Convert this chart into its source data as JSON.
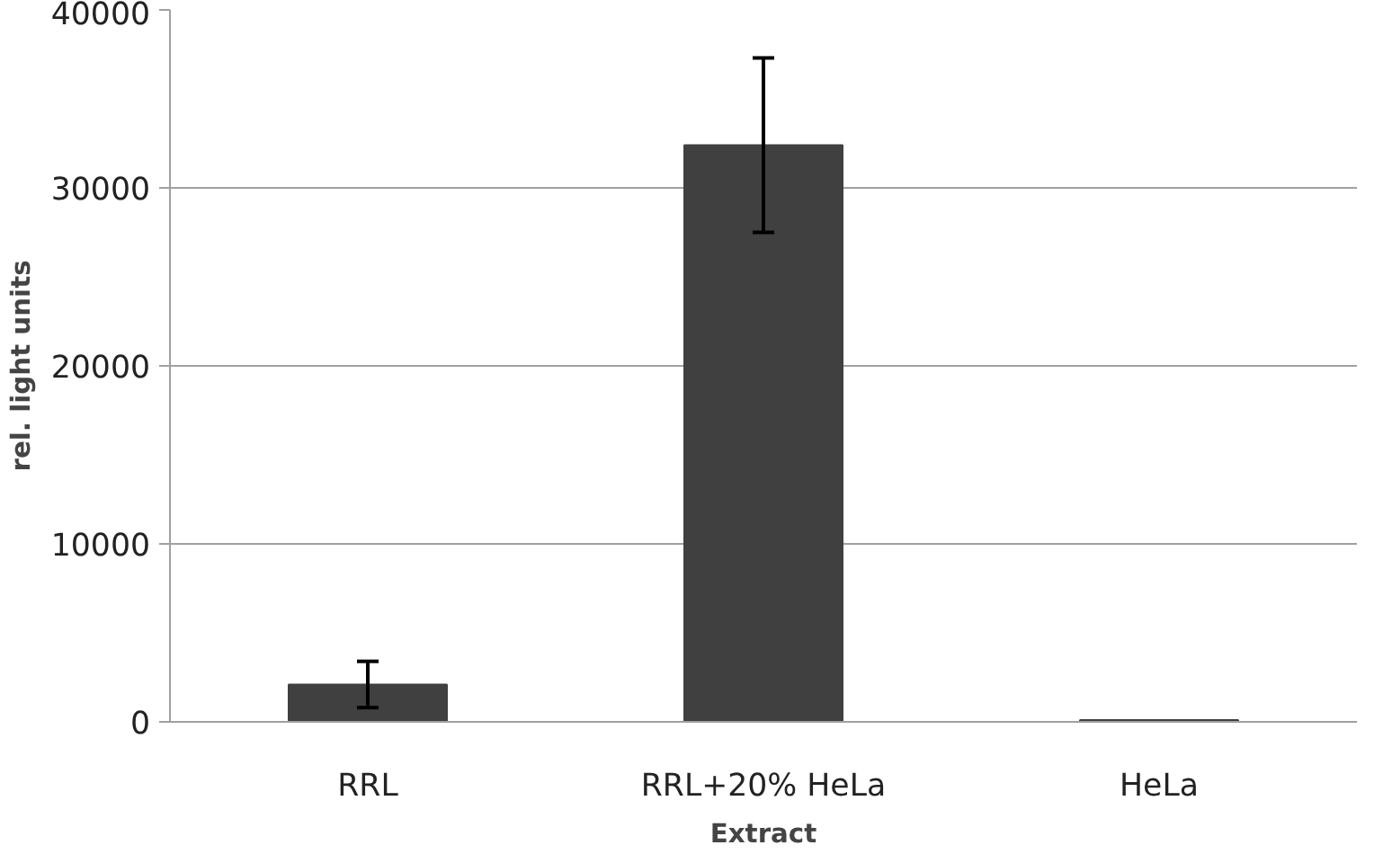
{
  "chart_data": {
    "type": "bar",
    "xlabel": "Extract",
    "ylabel": "rel. light units",
    "categories": [
      "RRL",
      "RRL+20% HeLa",
      "HeLa"
    ],
    "values": [
      2100,
      32400,
      100
    ],
    "errors": [
      1300,
      4900,
      null
    ],
    "color": "#404040",
    "ylim": [
      0,
      40000
    ],
    "yticks": [
      0,
      10000,
      20000,
      30000,
      40000
    ],
    "grid": "y"
  }
}
